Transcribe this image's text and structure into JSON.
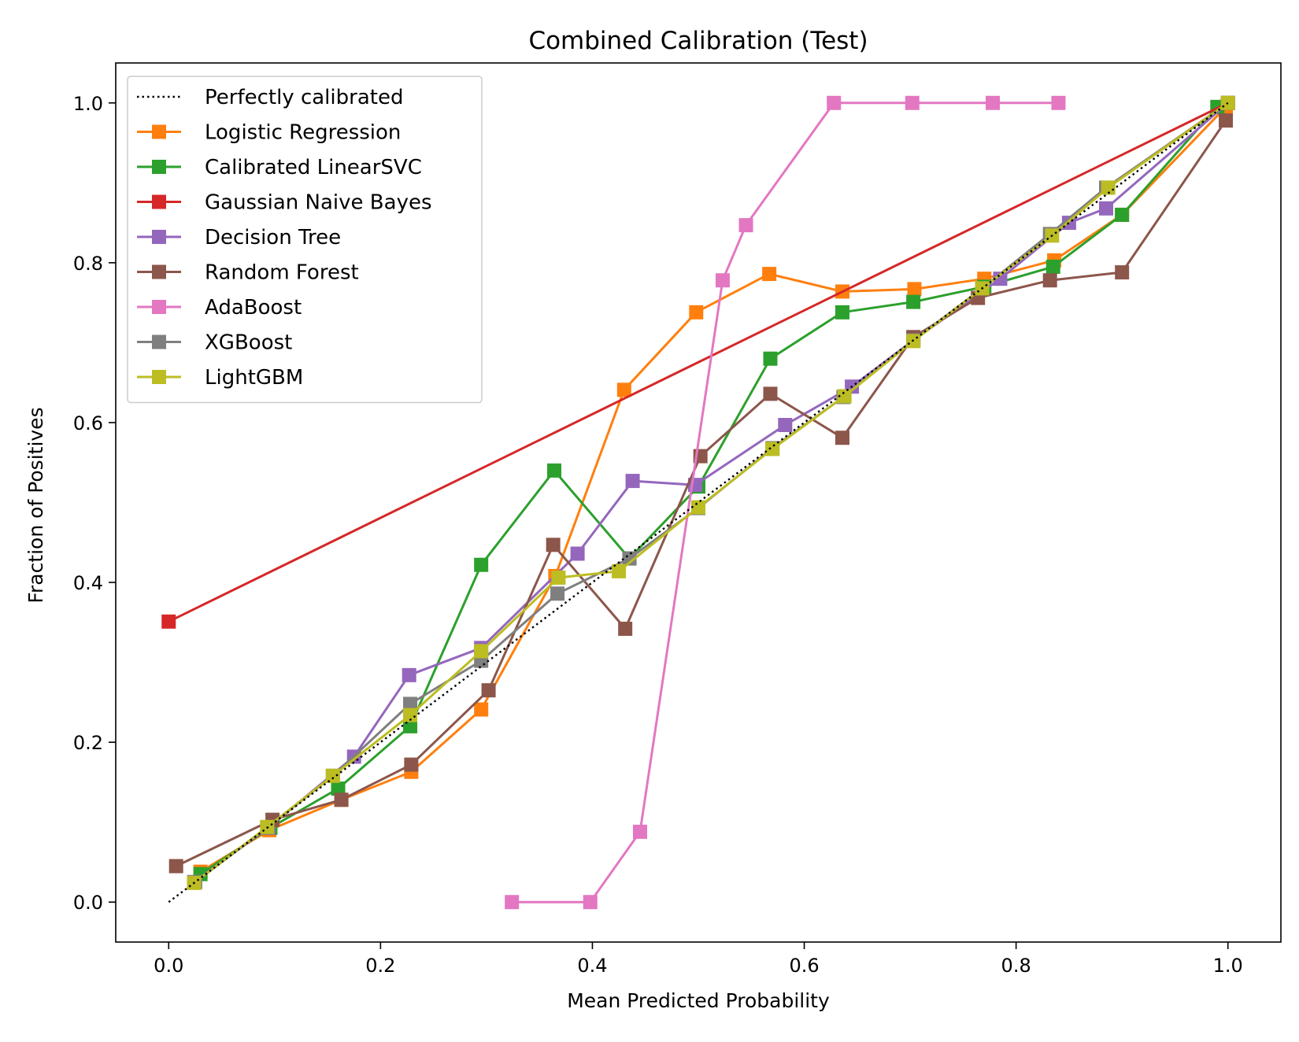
{
  "chart_data": {
    "type": "line",
    "title": "Combined Calibration (Test)",
    "xlabel": "Mean Predicted Probability",
    "ylabel": "Fraction of Positives",
    "xlim": [
      -0.05,
      1.05
    ],
    "ylim": [
      -0.05,
      1.05
    ],
    "xticks": [
      "0.0",
      "0.2",
      "0.4",
      "0.6",
      "0.8",
      "1.0"
    ],
    "yticks": [
      "0.0",
      "0.2",
      "0.4",
      "0.6",
      "0.8",
      "1.0"
    ],
    "grid": false,
    "legend_position": "top-left",
    "reference_line": {
      "name": "Perfectly calibrated",
      "style": "dotted",
      "color": "#000000",
      "x": [
        0,
        1
      ],
      "y": [
        0,
        1
      ]
    },
    "series": [
      {
        "name": "Logistic Regression",
        "color": "#ff7f0e",
        "x": [
          0.03,
          0.095,
          0.163,
          0.229,
          0.295,
          0.365,
          0.43,
          0.498,
          0.567,
          0.636,
          0.704,
          0.77,
          0.836,
          0.9,
          0.998
        ],
        "y": [
          0.038,
          0.09,
          0.128,
          0.163,
          0.241,
          0.408,
          0.641,
          0.738,
          0.786,
          0.764,
          0.767,
          0.78,
          0.803,
          0.86,
          0.995
        ]
      },
      {
        "name": "Calibrated LinearSVC",
        "color": "#2ca02c",
        "x": [
          0.03,
          0.096,
          0.16,
          0.228,
          0.295,
          0.364,
          0.435,
          0.5,
          0.568,
          0.636,
          0.703,
          0.77,
          0.835,
          0.9,
          0.99
        ],
        "y": [
          0.035,
          0.093,
          0.142,
          0.22,
          0.422,
          0.54,
          0.43,
          0.52,
          0.68,
          0.738,
          0.751,
          0.77,
          0.795,
          0.86,
          0.995
        ]
      },
      {
        "name": "Gaussian Naive Bayes",
        "color": "#d62728",
        "x": [
          0.0,
          1.0
        ],
        "y": [
          0.351,
          1.0
        ]
      },
      {
        "name": "Decision Tree",
        "color": "#9467bd",
        "x": [
          0.024,
          0.094,
          0.175,
          0.227,
          0.295,
          0.386,
          0.438,
          0.497,
          0.582,
          0.645,
          0.703,
          0.785,
          0.85,
          0.885,
          1.0
        ],
        "y": [
          0.025,
          0.093,
          0.182,
          0.284,
          0.318,
          0.436,
          0.527,
          0.522,
          0.597,
          0.645,
          0.703,
          0.78,
          0.85,
          0.868,
          1.0
        ]
      },
      {
        "name": "Random Forest",
        "color": "#8c564b",
        "x": [
          0.007,
          0.098,
          0.163,
          0.229,
          0.302,
          0.363,
          0.431,
          0.502,
          0.568,
          0.636,
          0.703,
          0.764,
          0.832,
          0.9,
          0.998
        ],
        "y": [
          0.045,
          0.103,
          0.128,
          0.172,
          0.265,
          0.447,
          0.342,
          0.558,
          0.636,
          0.581,
          0.707,
          0.756,
          0.778,
          0.788,
          0.978
        ]
      },
      {
        "name": "AdaBoost",
        "color": "#e377c2",
        "x": [
          0.324,
          0.398,
          0.445,
          0.523,
          0.545,
          0.628,
          0.702,
          0.778,
          0.84
        ],
        "y": [
          0.0,
          0.0,
          0.088,
          0.778,
          0.847,
          1.0,
          1.0,
          1.0,
          1.0
        ]
      },
      {
        "name": "XGBoost",
        "color": "#7f7f7f",
        "x": [
          0.025,
          0.093,
          0.155,
          0.228,
          0.295,
          0.367,
          0.435,
          0.5,
          0.57,
          0.637,
          0.703,
          0.768,
          0.832,
          0.885,
          1.0
        ],
        "y": [
          0.025,
          0.093,
          0.158,
          0.248,
          0.302,
          0.386,
          0.43,
          0.493,
          0.568,
          0.632,
          0.703,
          0.768,
          0.836,
          0.894,
          1.0
        ]
      },
      {
        "name": "LightGBM",
        "color": "#bcbd22",
        "x": [
          0.024,
          0.093,
          0.155,
          0.228,
          0.295,
          0.368,
          0.425,
          0.5,
          0.57,
          0.638,
          0.703,
          0.768,
          0.834,
          0.887,
          1.0
        ],
        "y": [
          0.024,
          0.094,
          0.158,
          0.234,
          0.314,
          0.406,
          0.414,
          0.494,
          0.567,
          0.633,
          0.702,
          0.768,
          0.834,
          0.894,
          1.0
        ]
      }
    ]
  }
}
